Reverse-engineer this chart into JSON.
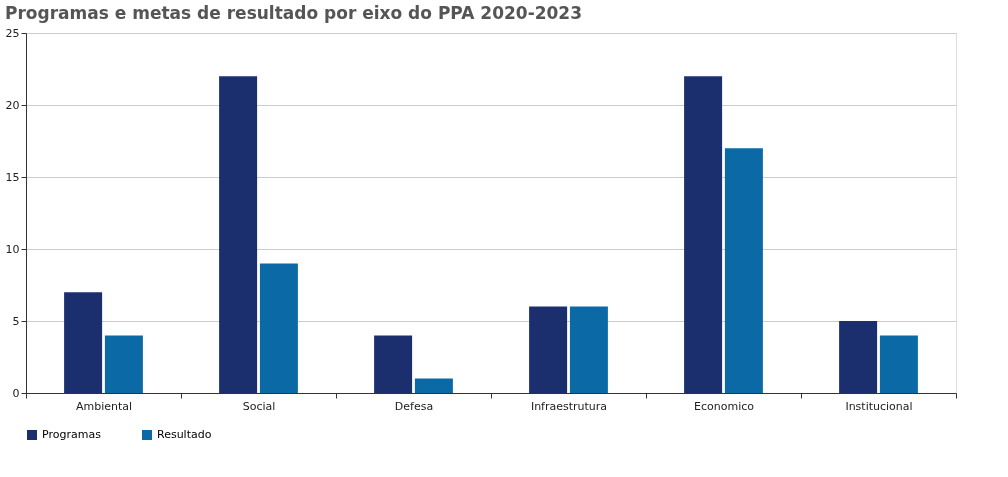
{
  "chart_data": {
    "type": "bar",
    "title": "Programas e metas de resultado por eixo do PPA 2020-2023",
    "categories": [
      "Ambiental",
      "Social",
      "Defesa",
      "Infraestrutura",
      "Economico",
      "Institucional"
    ],
    "series": [
      {
        "name": "Programas",
        "color": "#1b2f6e",
        "values": [
          7,
          22,
          4,
          6,
          22,
          5
        ]
      },
      {
        "name": "Resultado",
        "color": "#0b6aa6",
        "values": [
          4,
          9,
          1,
          6,
          17,
          4
        ]
      }
    ],
    "ylim": [
      0,
      25
    ],
    "yticks": [
      0,
      5,
      10,
      15,
      20,
      25
    ],
    "grid": "y",
    "legend": "bottom"
  }
}
